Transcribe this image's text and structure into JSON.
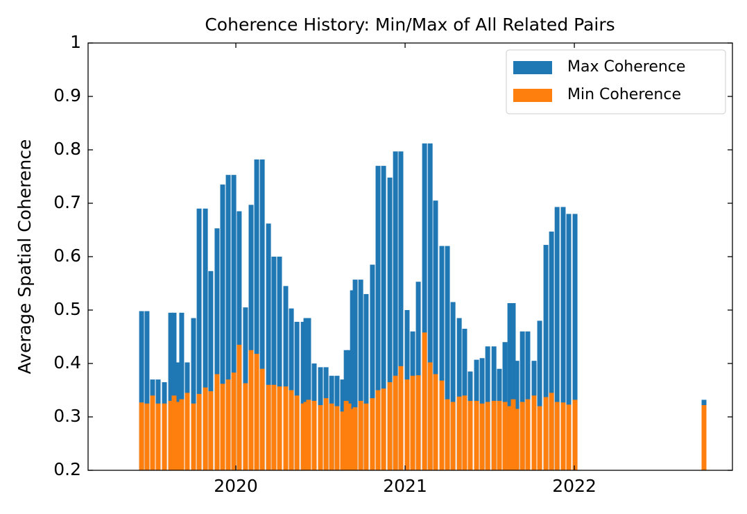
{
  "chart_data": {
    "type": "bar",
    "title": "Coherence History: Min/Max of All Related Pairs",
    "y_label": "Average Spatial Coherence",
    "x": [
      2019.443,
      2019.475,
      2019.508,
      2019.541,
      2019.578,
      2019.615,
      2019.635,
      2019.656,
      2019.68,
      2019.713,
      2019.75,
      2019.783,
      2019.82,
      2019.852,
      2019.889,
      2019.922,
      2019.955,
      2019.988,
      2020.02,
      2020.057,
      2020.09,
      2020.123,
      2020.156,
      2020.193,
      2020.225,
      2020.258,
      2020.295,
      2020.328,
      2020.361,
      2020.398,
      2020.414,
      2020.43,
      2020.463,
      2020.5,
      2020.533,
      2020.566,
      2020.598,
      2020.631,
      2020.652,
      2020.668,
      2020.689,
      2020.705,
      2020.738,
      2020.77,
      2020.807,
      2020.84,
      2020.873,
      2020.91,
      2020.943,
      2020.975,
      2021.012,
      2021.045,
      2021.078,
      2021.115,
      2021.148,
      2021.18,
      2021.217,
      2021.25,
      2021.283,
      2021.32,
      2021.352,
      2021.385,
      2021.422,
      2021.455,
      2021.488,
      2021.525,
      2021.557,
      2021.59,
      2021.619,
      2021.639,
      2021.66,
      2021.693,
      2021.725,
      2021.762,
      2021.795,
      2021.832,
      2021.865,
      2021.898,
      2021.934,
      2021.967,
      2022.004,
      2022.766
    ],
    "series": [
      {
        "name": "Max Coherence",
        "color": "#1f77b4",
        "values": [
          0.498,
          0.498,
          0.37,
          0.37,
          0.365,
          0.495,
          0.495,
          0.402,
          0.495,
          0.402,
          0.485,
          0.69,
          0.69,
          0.573,
          0.653,
          0.735,
          0.753,
          0.753,
          0.685,
          0.505,
          0.697,
          0.782,
          0.782,
          0.662,
          0.6,
          0.6,
          0.545,
          0.503,
          0.478,
          0.478,
          0.485,
          0.485,
          0.4,
          0.393,
          0.393,
          0.377,
          0.377,
          0.37,
          0.425,
          0.425,
          0.537,
          0.557,
          0.557,
          0.53,
          0.585,
          0.77,
          0.77,
          0.748,
          0.797,
          0.797,
          0.5,
          0.46,
          0.553,
          0.812,
          0.812,
          0.705,
          0.62,
          0.62,
          0.515,
          0.485,
          0.465,
          0.385,
          0.407,
          0.41,
          0.432,
          0.432,
          0.39,
          0.44,
          0.513,
          0.513,
          0.405,
          0.46,
          0.46,
          0.405,
          0.48,
          0.622,
          0.647,
          0.693,
          0.693,
          0.68,
          0.68,
          0.332
        ]
      },
      {
        "name": "Min Coherence",
        "color": "#ff7f0e",
        "values": [
          0.327,
          0.325,
          0.34,
          0.325,
          0.325,
          0.33,
          0.34,
          0.328,
          0.333,
          0.345,
          0.325,
          0.343,
          0.355,
          0.348,
          0.38,
          0.362,
          0.37,
          0.383,
          0.435,
          0.363,
          0.425,
          0.418,
          0.39,
          0.36,
          0.36,
          0.357,
          0.357,
          0.35,
          0.34,
          0.325,
          0.328,
          0.332,
          0.33,
          0.322,
          0.335,
          0.325,
          0.32,
          0.31,
          0.33,
          0.325,
          0.315,
          0.318,
          0.33,
          0.325,
          0.335,
          0.35,
          0.353,
          0.365,
          0.377,
          0.395,
          0.37,
          0.377,
          0.378,
          0.458,
          0.402,
          0.38,
          0.368,
          0.333,
          0.328,
          0.338,
          0.34,
          0.33,
          0.33,
          0.325,
          0.328,
          0.33,
          0.33,
          0.328,
          0.32,
          0.333,
          0.315,
          0.328,
          0.333,
          0.34,
          0.32,
          0.337,
          0.345,
          0.328,
          0.327,
          0.323,
          0.332,
          0.322
        ]
      }
    ],
    "xlim": [
      2019.127,
      2022.934
    ],
    "xticks": [
      2020,
      2021,
      2022
    ],
    "ylim": [
      0.2,
      1.0
    ],
    "yticks": [
      0.2,
      0.3,
      0.4,
      0.5,
      0.6,
      0.7,
      0.8,
      0.9,
      1.0
    ],
    "grid": false,
    "legend": "upper right"
  }
}
